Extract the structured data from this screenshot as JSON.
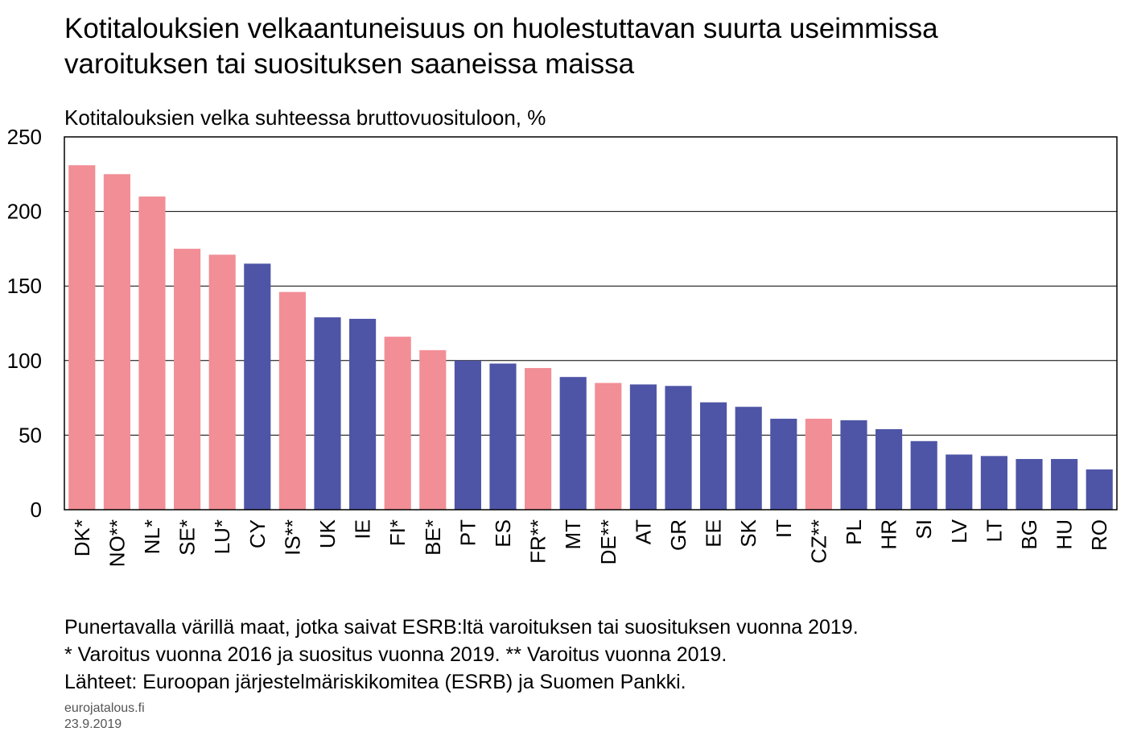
{
  "title_lines": [
    "Kotitalouksien velkaantuneisuus on huolestuttavan suurta useimmissa",
    "varoituksen tai suosituksen saaneissa maissa"
  ],
  "colors": {
    "warned": "#f28e96",
    "other": "#4e55a6",
    "grid": "#000000"
  },
  "chart_data": {
    "type": "bar",
    "title": "Kotitalouksien velkaantuneisuus on huolestuttavan suurta useimmissa varoituksen tai suosituksen saaneissa maissa",
    "ylabel": "Kotitalouksien velka suhteessa bruttovuosituloon, %",
    "xlabel": "",
    "ylim": [
      0,
      250
    ],
    "yticks": [
      0,
      50,
      100,
      150,
      200,
      250
    ],
    "grid": true,
    "categories": [
      "DK*",
      "NO**",
      "NL*",
      "SE*",
      "LU*",
      "CY",
      "IS**",
      "UK",
      "IE",
      "FI*",
      "BE*",
      "PT",
      "ES",
      "FR**",
      "MT",
      "DE**",
      "AT",
      "GR",
      "EE",
      "SK",
      "IT",
      "CZ**",
      "PL",
      "HR",
      "SI",
      "LV",
      "LT",
      "BG",
      "HU",
      "RO"
    ],
    "values": [
      231,
      225,
      210,
      175,
      171,
      165,
      146,
      129,
      128,
      116,
      107,
      100,
      98,
      95,
      89,
      85,
      84,
      83,
      72,
      69,
      61,
      61,
      60,
      54,
      46,
      37,
      36,
      34,
      34,
      27
    ],
    "highlighted": [
      true,
      true,
      true,
      true,
      true,
      false,
      true,
      false,
      false,
      true,
      true,
      false,
      false,
      true,
      false,
      true,
      false,
      false,
      false,
      false,
      false,
      true,
      false,
      false,
      false,
      false,
      false,
      false,
      false,
      false
    ]
  },
  "notes": [
    "Punertavalla värillä maat, jotka saivat ESRB:ltä varoituksen tai suosituksen vuonna 2019.",
    "* Varoitus vuonna 2016 ja suositus vuonna 2019. ** Varoitus vuonna 2019.",
    "Lähteet: Euroopan järjestelmäriskikomitea (ESRB) ja Suomen Pankki."
  ],
  "source_site": "eurojatalous.fi",
  "date": "23.9.2019"
}
